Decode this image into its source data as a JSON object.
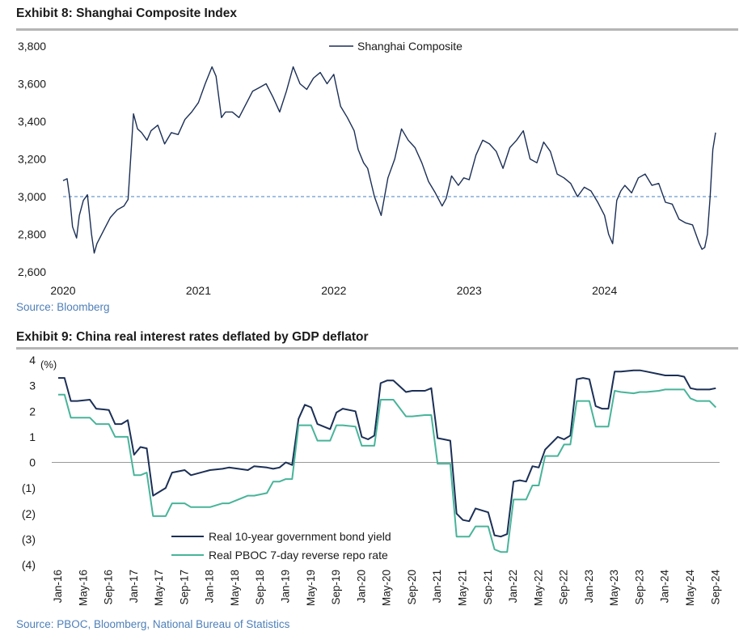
{
  "colors": {
    "navy": "#1b2f56",
    "teal": "#48b49a",
    "refline": "#6a9bd0",
    "rule": "#b5b5b5",
    "source": "#4e7fb8"
  },
  "exhibit8": {
    "title": "Exhibit 8: Shanghai Composite Index",
    "source": "Source: Bloomberg"
  },
  "exhibit9": {
    "title": "Exhibit 9: China real interest rates deflated by GDP deflator",
    "source": "Source: PBOC, Bloomberg, National Bureau of Statistics"
  },
  "chart_data": [
    {
      "type": "line",
      "title": "Exhibit 8: Shanghai Composite Index",
      "xlim": [
        2020.0,
        2024.85
      ],
      "ylim": [
        2600,
        3800
      ],
      "yticks": [
        2600,
        2800,
        3000,
        3200,
        3400,
        3600,
        3800
      ],
      "ytick_labels": [
        "2,600",
        "2,800",
        "3,000",
        "3,200",
        "3,400",
        "3,600",
        "3,800"
      ],
      "xticks": [
        2020,
        2021,
        2022,
        2023,
        2024
      ],
      "xtick_labels": [
        "2020",
        "2021",
        "2022",
        "2023",
        "2024"
      ],
      "reference_line": {
        "y": 3000,
        "style": "dashed"
      },
      "legend": "top-center",
      "grid": false,
      "series": [
        {
          "name": "Shanghai Composite",
          "x": [
            2020.0,
            2020.03,
            2020.05,
            2020.07,
            2020.1,
            2020.12,
            2020.15,
            2020.18,
            2020.21,
            2020.23,
            2020.25,
            2020.3,
            2020.35,
            2020.4,
            2020.45,
            2020.48,
            2020.5,
            2020.52,
            2020.55,
            2020.58,
            2020.62,
            2020.65,
            2020.7,
            2020.75,
            2020.8,
            2020.85,
            2020.9,
            2020.95,
            2021.0,
            2021.05,
            2021.1,
            2021.13,
            2021.17,
            2021.2,
            2021.25,
            2021.3,
            2021.35,
            2021.4,
            2021.45,
            2021.5,
            2021.55,
            2021.6,
            2021.65,
            2021.7,
            2021.75,
            2021.8,
            2021.85,
            2021.9,
            2021.95,
            2022.0,
            2022.05,
            2022.1,
            2022.15,
            2022.18,
            2022.22,
            2022.25,
            2022.3,
            2022.35,
            2022.4,
            2022.45,
            2022.5,
            2022.55,
            2022.6,
            2022.65,
            2022.7,
            2022.75,
            2022.8,
            2022.83,
            2022.87,
            2022.92,
            2022.96,
            2023.0,
            2023.05,
            2023.1,
            2023.15,
            2023.2,
            2023.25,
            2023.3,
            2023.35,
            2023.4,
            2023.45,
            2023.5,
            2023.55,
            2023.6,
            2023.65,
            2023.7,
            2023.75,
            2023.8,
            2023.85,
            2023.9,
            2023.95,
            2024.0,
            2024.03,
            2024.06,
            2024.09,
            2024.12,
            2024.15,
            2024.2,
            2024.25,
            2024.3,
            2024.35,
            2024.4,
            2024.45,
            2024.5,
            2024.55,
            2024.6,
            2024.65,
            2024.7,
            2024.72,
            2024.74,
            2024.76,
            2024.78,
            2024.8,
            2024.82
          ],
          "values": [
            3085,
            3095,
            2990,
            2840,
            2780,
            2900,
            2980,
            3010,
            2800,
            2700,
            2750,
            2820,
            2890,
            2930,
            2950,
            2985,
            3210,
            3440,
            3360,
            3340,
            3300,
            3350,
            3380,
            3280,
            3340,
            3330,
            3410,
            3450,
            3500,
            3600,
            3690,
            3640,
            3420,
            3450,
            3450,
            3420,
            3490,
            3560,
            3580,
            3600,
            3530,
            3450,
            3560,
            3690,
            3600,
            3570,
            3630,
            3660,
            3600,
            3650,
            3480,
            3420,
            3350,
            3250,
            3180,
            3150,
            3000,
            2900,
            3100,
            3200,
            3360,
            3300,
            3260,
            3180,
            3080,
            3020,
            2950,
            2990,
            3110,
            3060,
            3100,
            3090,
            3220,
            3300,
            3280,
            3240,
            3150,
            3260,
            3300,
            3350,
            3200,
            3180,
            3290,
            3240,
            3120,
            3100,
            3070,
            3000,
            3050,
            3030,
            2970,
            2900,
            2800,
            2750,
            2980,
            3030,
            3060,
            3020,
            3100,
            3120,
            3060,
            3070,
            2970,
            2960,
            2880,
            2860,
            2850,
            2750,
            2720,
            2730,
            2800,
            3000,
            3250,
            3340
          ]
        }
      ]
    },
    {
      "type": "line",
      "title": "Exhibit 9: China real interest rates deflated by GDP deflator",
      "ylabel": "(%)",
      "ylim": [
        -4,
        4
      ],
      "yticks": [
        -4,
        -3,
        -2,
        -1,
        0,
        1,
        2,
        3,
        4
      ],
      "ytick_labels": [
        "(4)",
        "(3)",
        "(2)",
        "(1)",
        "0",
        "1",
        "2",
        "3",
        "4"
      ],
      "categories": [
        "Jan-16",
        "May-16",
        "Sep-16",
        "Jan-17",
        "May-17",
        "Sep-17",
        "Jan-18",
        "May-18",
        "Sep-18",
        "Jan-19",
        "May-19",
        "Sep-19",
        "Jan-20",
        "May-20",
        "Sep-20",
        "Jan-21",
        "May-21",
        "Sep-21",
        "Jan-22",
        "May-22",
        "Sep-22",
        "Jan-23",
        "May-23",
        "Sep-23",
        "Jan-24",
        "May-24",
        "Sep-24"
      ],
      "x_months_from_jan16_note_removed": null,
      "reference_line": {
        "y": 0
      },
      "legend": "bottom-left",
      "grid": false,
      "series": [
        {
          "name": "Real 10-year government bond yield",
          "x": [
            "Jan-16",
            "Feb-16",
            "Mar-16",
            "Apr-16",
            "Jun-16",
            "Jul-16",
            "Sep-16",
            "Oct-16",
            "Nov-16",
            "Dec-16",
            "Jan-17",
            "Feb-17",
            "Mar-17",
            "Apr-17",
            "Jun-17",
            "Jul-17",
            "Sep-17",
            "Oct-17",
            "Jan-18",
            "Mar-18",
            "Apr-18",
            "Jul-18",
            "Aug-18",
            "Oct-18",
            "Nov-18",
            "Dec-18",
            "Jan-19",
            "Feb-19",
            "Mar-19",
            "Apr-19",
            "May-19",
            "Jun-19",
            "Aug-19",
            "Sep-19",
            "Oct-19",
            "Dec-19",
            "Jan-20",
            "Feb-20",
            "Mar-20",
            "Apr-20",
            "May-20",
            "Jun-20",
            "Aug-20",
            "Sep-20",
            "Nov-20",
            "Dec-20",
            "Jan-21",
            "Feb-21",
            "Mar-21",
            "Apr-21",
            "May-21",
            "Jun-21",
            "Jul-21",
            "Sep-21",
            "Oct-21",
            "Nov-21",
            "Dec-21",
            "Jan-22",
            "Feb-22",
            "Mar-22",
            "Apr-22",
            "May-22",
            "Jun-22",
            "Aug-22",
            "Sep-22",
            "Oct-22",
            "Nov-22",
            "Dec-22",
            "Jan-23",
            "Feb-23",
            "Mar-23",
            "Apr-23",
            "May-23",
            "Jun-23",
            "Aug-23",
            "Sep-23",
            "Oct-23",
            "Dec-23",
            "Jan-24",
            "Mar-24",
            "Apr-24",
            "May-24",
            "Jun-24",
            "Aug-24",
            "Sep-24"
          ],
          "values": [
            3.3,
            3.3,
            2.4,
            2.4,
            2.45,
            2.1,
            2.05,
            1.5,
            1.5,
            1.65,
            0.3,
            0.6,
            0.55,
            -1.3,
            -1.0,
            -0.4,
            -0.3,
            -0.5,
            -0.3,
            -0.25,
            -0.2,
            -0.3,
            -0.15,
            -0.2,
            -0.25,
            -0.2,
            0.0,
            -0.1,
            1.7,
            2.25,
            2.15,
            1.5,
            1.3,
            1.95,
            2.1,
            2.0,
            1.0,
            0.9,
            1.05,
            3.1,
            3.2,
            3.2,
            2.75,
            2.8,
            2.8,
            2.9,
            0.95,
            0.9,
            0.85,
            -2.0,
            -2.25,
            -2.3,
            -1.8,
            -1.95,
            -2.85,
            -2.9,
            -2.8,
            -0.75,
            -0.7,
            -0.75,
            -0.15,
            -0.2,
            0.5,
            1.0,
            0.9,
            1.05,
            3.25,
            3.3,
            3.25,
            2.2,
            2.1,
            2.1,
            3.55,
            3.55,
            3.6,
            3.6,
            3.55,
            3.45,
            3.4,
            3.4,
            3.35,
            2.9,
            2.85,
            2.85,
            2.9
          ]
        },
        {
          "name": "Real PBOC 7-day reverse repo rate",
          "x": [
            "Jan-16",
            "Feb-16",
            "Mar-16",
            "Apr-16",
            "Jun-16",
            "Jul-16",
            "Sep-16",
            "Oct-16",
            "Nov-16",
            "Dec-16",
            "Jan-17",
            "Feb-17",
            "Mar-17",
            "Apr-17",
            "Jun-17",
            "Jul-17",
            "Sep-17",
            "Oct-17",
            "Jan-18",
            "Mar-18",
            "Apr-18",
            "Jul-18",
            "Aug-18",
            "Oct-18",
            "Nov-18",
            "Dec-18",
            "Jan-19",
            "Feb-19",
            "Mar-19",
            "Apr-19",
            "May-19",
            "Jun-19",
            "Aug-19",
            "Sep-19",
            "Oct-19",
            "Dec-19",
            "Jan-20",
            "Feb-20",
            "Mar-20",
            "Apr-20",
            "May-20",
            "Jun-20",
            "Aug-20",
            "Sep-20",
            "Nov-20",
            "Dec-20",
            "Jan-21",
            "Feb-21",
            "Mar-21",
            "Apr-21",
            "May-21",
            "Jun-21",
            "Jul-21",
            "Sep-21",
            "Oct-21",
            "Nov-21",
            "Dec-21",
            "Jan-22",
            "Feb-22",
            "Mar-22",
            "Apr-22",
            "May-22",
            "Jun-22",
            "Aug-22",
            "Sep-22",
            "Oct-22",
            "Nov-22",
            "Dec-22",
            "Jan-23",
            "Feb-23",
            "Mar-23",
            "Apr-23",
            "May-23",
            "Jun-23",
            "Aug-23",
            "Sep-23",
            "Oct-23",
            "Dec-23",
            "Jan-24",
            "Mar-24",
            "Apr-24",
            "May-24",
            "Jun-24",
            "Aug-24",
            "Sep-24"
          ],
          "values": [
            2.65,
            2.65,
            1.75,
            1.75,
            1.75,
            1.5,
            1.5,
            1.0,
            1.0,
            1.0,
            -0.5,
            -0.5,
            -0.4,
            -2.1,
            -2.1,
            -1.6,
            -1.6,
            -1.75,
            -1.75,
            -1.6,
            -1.6,
            -1.3,
            -1.3,
            -1.2,
            -0.75,
            -0.75,
            -0.65,
            -0.65,
            1.45,
            1.45,
            1.45,
            0.85,
            0.85,
            1.45,
            1.45,
            1.4,
            0.65,
            0.65,
            0.65,
            2.45,
            2.45,
            2.45,
            1.8,
            1.8,
            1.85,
            1.85,
            -0.05,
            -0.05,
            -0.05,
            -2.9,
            -2.9,
            -2.9,
            -2.5,
            -2.5,
            -3.4,
            -3.5,
            -3.5,
            -1.45,
            -1.45,
            -1.45,
            -0.9,
            -0.9,
            0.25,
            0.25,
            0.7,
            0.7,
            2.4,
            2.4,
            2.4,
            1.4,
            1.4,
            1.4,
            2.8,
            2.75,
            2.7,
            2.75,
            2.75,
            2.8,
            2.85,
            2.85,
            2.85,
            2.5,
            2.4,
            2.4,
            2.15
          ]
        }
      ]
    }
  ]
}
